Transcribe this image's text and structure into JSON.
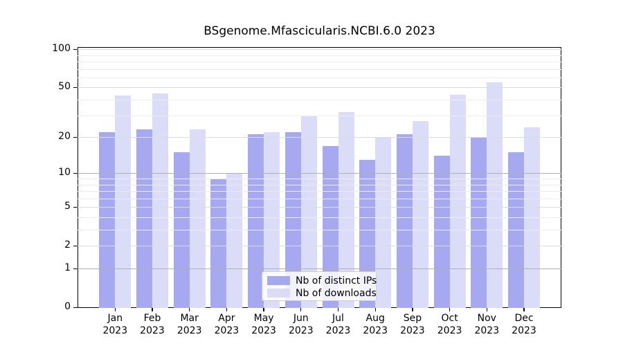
{
  "title": "BSgenome.Mfascicularis.NCBI.6.0 2023",
  "chart_data": {
    "type": "bar",
    "title": "BSgenome.Mfascicularis.NCBI.6.0 2023",
    "categories": [
      "Jan",
      "Feb",
      "Mar",
      "Apr",
      "May",
      "Jun",
      "Jul",
      "Aug",
      "Sep",
      "Oct",
      "Nov",
      "Dec"
    ],
    "year_label": "2023",
    "series": [
      {
        "name": "Nb of distinct IPs",
        "color": "#a6a9f0",
        "values": [
          22,
          23,
          15,
          9,
          21,
          22,
          17,
          13,
          21,
          14,
          20,
          15
        ]
      },
      {
        "name": "Nb of downloads",
        "color": "#dbdcf8",
        "values": [
          43,
          45,
          23,
          10,
          22,
          30,
          32,
          20,
          27,
          44,
          55,
          24
        ]
      }
    ],
    "y_ticks": [
      0,
      1,
      2,
      5,
      10,
      20,
      50,
      100
    ],
    "y_scale": "log10(value+1)",
    "ylim": [
      0,
      110
    ],
    "xlabel": "",
    "ylabel": "",
    "grid": true,
    "legend_position": "bottom-center"
  }
}
